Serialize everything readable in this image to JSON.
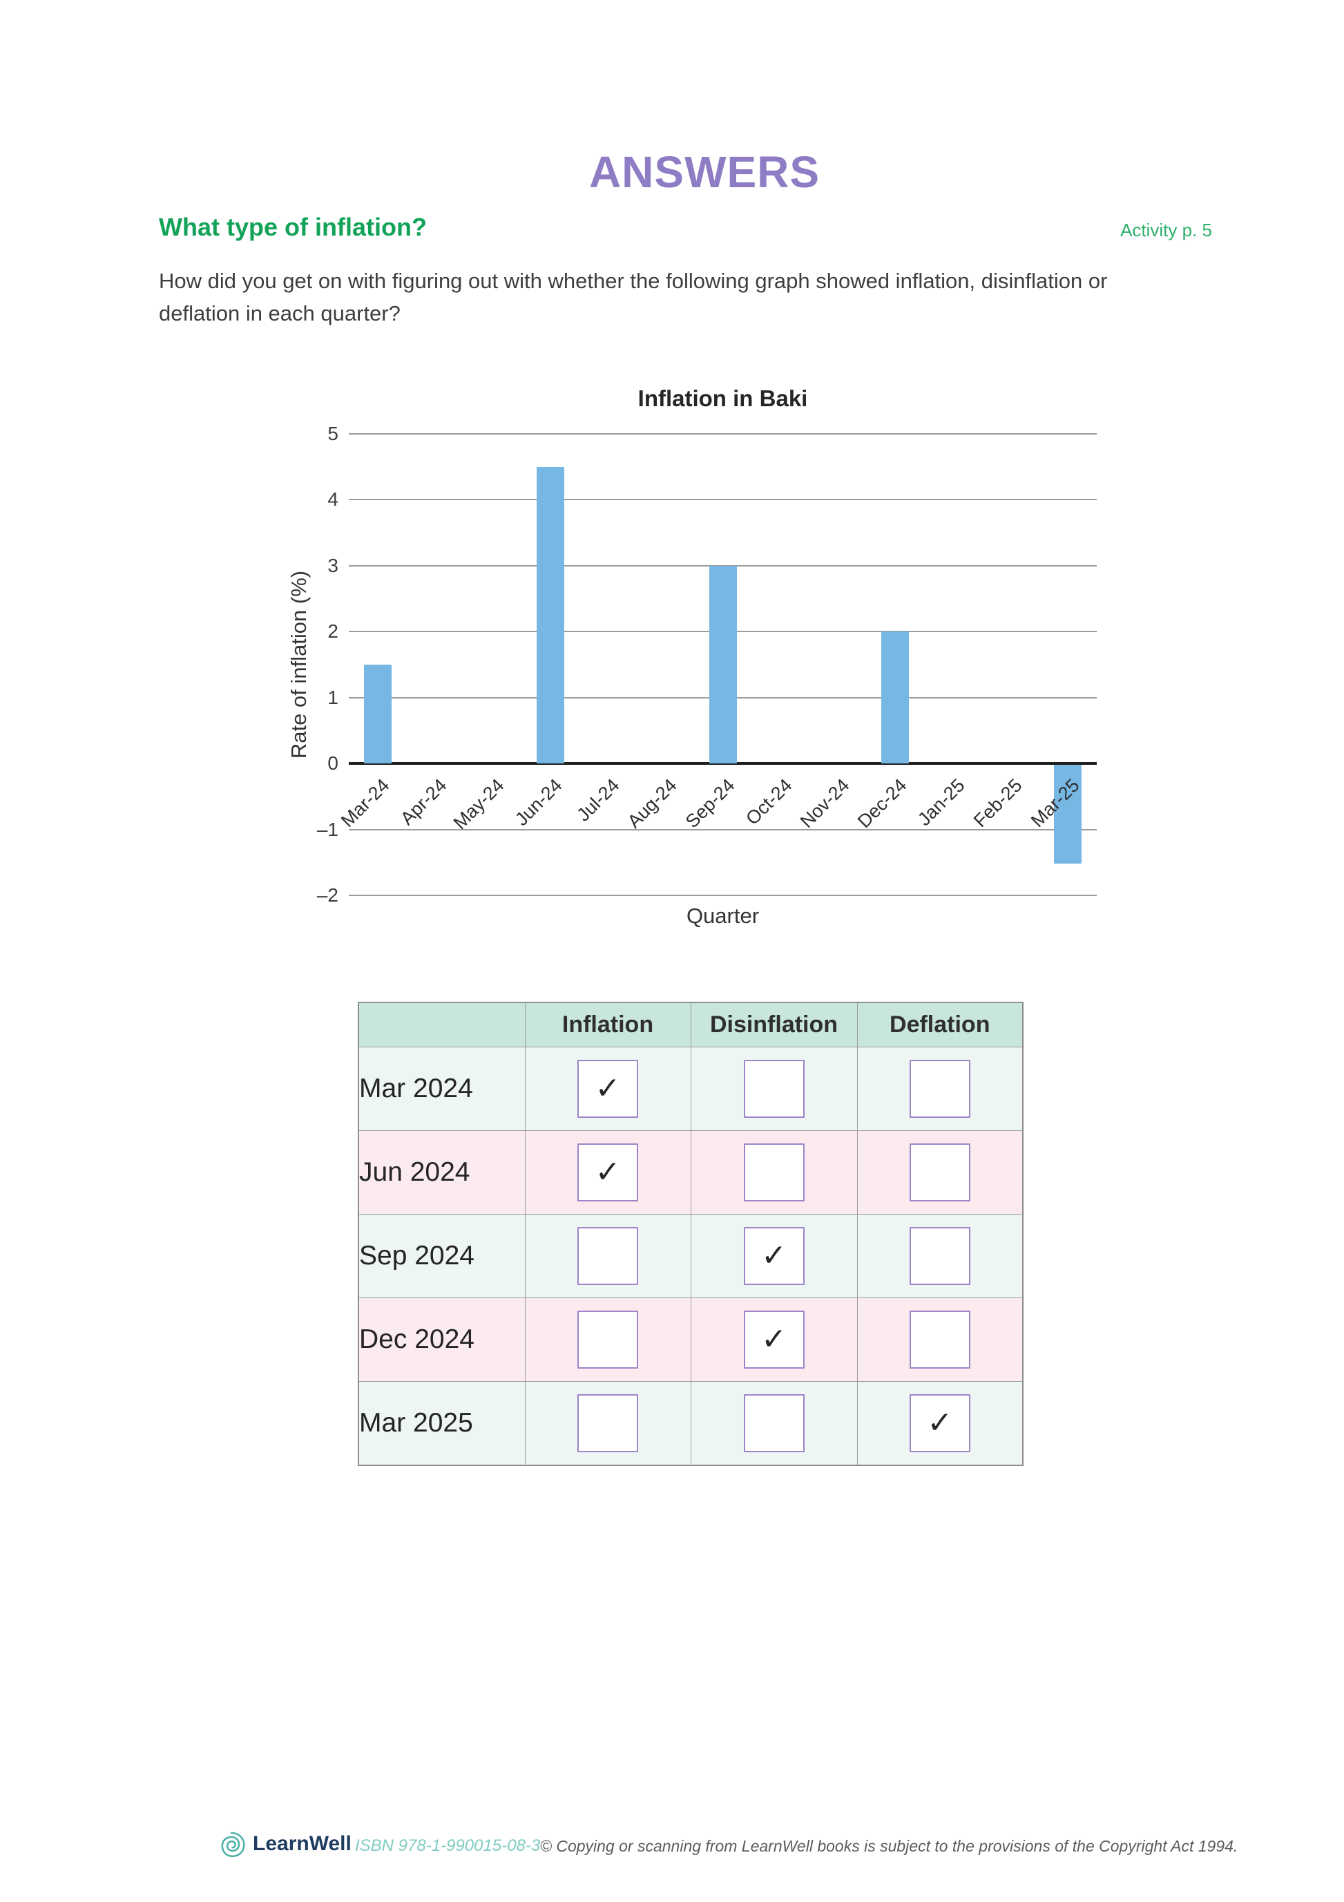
{
  "header": {
    "title": "ANSWERS",
    "section_heading": "What type of inflation?",
    "activity_ref": "Activity p. 5"
  },
  "intro": {
    "text": "How did you get on with figuring out with whether the following graph showed inflation, disinflation or deflation in each quarter?"
  },
  "chart_data": {
    "type": "bar",
    "title": "Inflation in Baki",
    "xlabel": "Quarter",
    "ylabel": "Rate of inflation (%)",
    "categories": [
      "Mar-24",
      "Apr-24",
      "May-24",
      "Jun-24",
      "Jul-24",
      "Aug-24",
      "Sep-24",
      "Oct-24",
      "Nov-24",
      "Dec-24",
      "Jan-25",
      "Feb-25",
      "Mar-25"
    ],
    "values": [
      1.5,
      0,
      0,
      4.5,
      0,
      0,
      3,
      0,
      0,
      2,
      0,
      0,
      -1.5
    ],
    "ylim": [
      -2,
      5
    ],
    "ytick_step": 1,
    "grid": true,
    "legend": false,
    "bar_color": "#76b7e3"
  },
  "answer_table": {
    "columns": [
      "",
      "Inflation",
      "Disinflation",
      "Deflation"
    ],
    "check_glyph": "✓",
    "rows": [
      {
        "label": "Mar 2024",
        "checks": [
          true,
          false,
          false
        ]
      },
      {
        "label": "Jun 2024",
        "checks": [
          true,
          false,
          false
        ]
      },
      {
        "label": "Sep 2024",
        "checks": [
          false,
          true,
          false
        ]
      },
      {
        "label": "Dec 2024",
        "checks": [
          false,
          true,
          false
        ]
      },
      {
        "label": "Mar 2025",
        "checks": [
          false,
          false,
          true
        ]
      }
    ]
  },
  "footer": {
    "brand": "LearnWell",
    "isbn": "ISBN 978-1-990015-08-3",
    "notice": "© Copying or scanning from LearnWell books is subject to the provisions of the Copyright Act 1994."
  },
  "colors": {
    "title_purple": "#8e7cc4",
    "heading_green": "#12a358",
    "activity_green": "#2cb06c",
    "bar_blue": "#76b7e3",
    "table_header_bg": "#c8e6da",
    "row_mint": "#edf6f2",
    "row_pink": "#fcebee",
    "checkbox_border": "#9e85ca",
    "brand_navy": "#1e3a5f",
    "logo_teal": "#4ab0a8"
  }
}
